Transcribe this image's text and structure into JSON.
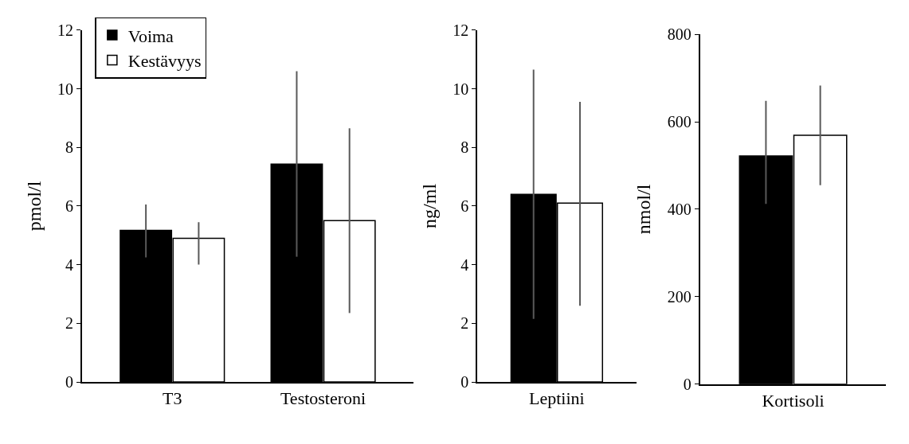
{
  "chart_data": [
    {
      "type": "bar",
      "categories": [
        "T3",
        "Testosteroni"
      ],
      "ylabel": "pmol/l",
      "ylim": [
        0,
        12
      ],
      "yticks": [
        0,
        2,
        4,
        6,
        8,
        10,
        12
      ],
      "legend": "top left",
      "series": [
        {
          "name": "Voima",
          "color": "#000000",
          "values": [
            5.17,
            7.43
          ],
          "errors": [
            [
              4.25,
              6.05
            ],
            [
              4.27,
              10.6
            ]
          ]
        },
        {
          "name": "Kestävyys",
          "color": "#ffffff",
          "values": [
            4.9,
            5.5
          ],
          "errors": [
            [
              4.0,
              5.45
            ],
            [
              2.35,
              8.65
            ]
          ]
        }
      ]
    },
    {
      "type": "bar",
      "categories": [
        "Leptiini"
      ],
      "ylabel": "ng/ml",
      "ylim": [
        0,
        12
      ],
      "yticks": [
        0,
        2,
        4,
        6,
        8,
        10,
        12
      ],
      "series": [
        {
          "color": "#000000",
          "values": [
            6.4
          ],
          "errors": [
            [
              2.15,
              10.65
            ]
          ]
        },
        {
          "color": "#ffffff",
          "values": [
            6.1
          ],
          "errors": [
            [
              2.6,
              9.55
            ]
          ]
        }
      ]
    },
    {
      "type": "bar",
      "categories": [
        "Kortisoli"
      ],
      "ylabel": "nmol/l",
      "ylim": [
        0,
        800
      ],
      "yticks": [
        0,
        200,
        400,
        600,
        800
      ],
      "series": [
        {
          "color": "#000000",
          "values": [
            522
          ],
          "errors": [
            [
              412,
              648
            ]
          ]
        },
        {
          "color": "#ffffff",
          "values": [
            569
          ],
          "errors": [
            [
              455,
              683
            ]
          ]
        }
      ]
    }
  ]
}
